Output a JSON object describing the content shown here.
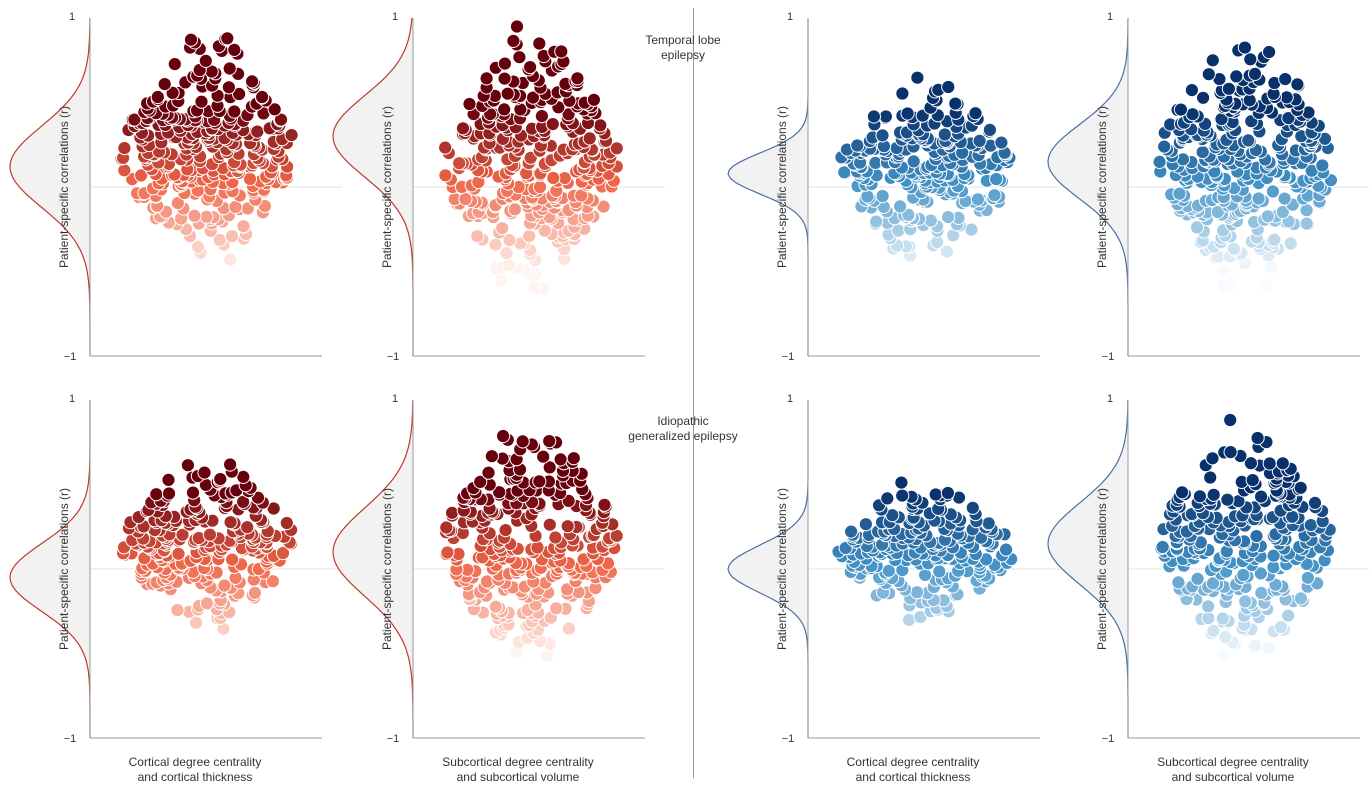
{
  "groups": {
    "tle": {
      "line1": "Temporal lobe",
      "line2": "epilepsy"
    },
    "ige": {
      "line1": "Idiopathic",
      "line2": "generalized epilepsy"
    }
  },
  "xlabels": {
    "cortical": {
      "line1": "Cortical degree centrality",
      "line2": "and cortical thickness"
    },
    "subcortical": {
      "line1": "Subcortical degree centrality",
      "line2": "and subcortical volume"
    }
  },
  "colors": {
    "red_dark": "#67000d",
    "red_mid": "#ef6548",
    "red_light": "#fff5f0",
    "blue_dark": "#08306b",
    "blue_mid": "#4292c6",
    "blue_light": "#f7fbff",
    "red_curve": "#c0392b",
    "blue_curve": "#4a6fa5"
  },
  "chart_data": [
    {
      "type": "scatter",
      "id": "tle-cortical-red",
      "row": 0,
      "col": 0,
      "palette": "red",
      "ylabel": "Patient-specific correlations (r)",
      "ylim": [
        -1,
        1
      ],
      "yticks": [
        "1",
        "−1"
      ],
      "center": 0.2,
      "spread": 0.55,
      "n": 330,
      "kde_center": 0.12,
      "kde_sd": 0.24
    },
    {
      "type": "scatter",
      "id": "tle-subcortical-red",
      "row": 0,
      "col": 1,
      "palette": "red",
      "ylabel": "Patient-specific correlations (r)",
      "ylim": [
        -1,
        1
      ],
      "yticks": [
        "1",
        "−1"
      ],
      "center": 0.15,
      "spread": 0.65,
      "n": 330,
      "kde_center": 0.3,
      "kde_sd": 0.24
    },
    {
      "type": "scatter",
      "id": "tle-cortical-blue",
      "row": 0,
      "col": 2,
      "palette": "blue",
      "ylabel": "Patient-specific correlations (r)",
      "ylim": [
        -1,
        1
      ],
      "yticks": [
        "1",
        "−1"
      ],
      "center": 0.1,
      "spread": 0.45,
      "n": 260,
      "kde_center": 0.08,
      "kde_sd": 0.12
    },
    {
      "type": "scatter",
      "id": "tle-subcortical-blue",
      "row": 0,
      "col": 3,
      "palette": "blue",
      "ylabel": "Patient-specific correlations (r)",
      "ylim": [
        -1,
        1
      ],
      "yticks": [
        "1",
        "−1"
      ],
      "center": 0.15,
      "spread": 0.65,
      "n": 330,
      "kde_center": 0.15,
      "kde_sd": 0.22
    },
    {
      "type": "scatter",
      "id": "ige-cortical-red",
      "row": 1,
      "col": 0,
      "palette": "red",
      "ylabel": "Patient-specific correlations (r)",
      "ylim": [
        -1,
        1
      ],
      "yticks": [
        "1",
        "−1"
      ],
      "center": 0.15,
      "spread": 0.42,
      "n": 260,
      "kde_center": -0.05,
      "kde_sd": 0.2
    },
    {
      "type": "scatter",
      "id": "ige-subcortical-red",
      "row": 1,
      "col": 1,
      "palette": "red",
      "ylabel": "Patient-specific correlations (r)",
      "ylim": [
        -1,
        1
      ],
      "yticks": [
        "1",
        "−1"
      ],
      "center": 0.15,
      "spread": 0.6,
      "n": 300,
      "kde_center": 0.1,
      "kde_sd": 0.26
    },
    {
      "type": "scatter",
      "id": "ige-cortical-blue",
      "row": 1,
      "col": 2,
      "palette": "blue",
      "ylabel": "Patient-specific correlations (r)",
      "ylim": [
        -1,
        1
      ],
      "yticks": [
        "1",
        "−1"
      ],
      "center": 0.1,
      "spread": 0.35,
      "n": 220,
      "kde_center": 0.0,
      "kde_sd": 0.14
    },
    {
      "type": "scatter",
      "id": "ige-subcortical-blue",
      "row": 1,
      "col": 3,
      "palette": "blue",
      "ylabel": "Patient-specific correlations (r)",
      "ylim": [
        -1,
        1
      ],
      "yticks": [
        "1",
        "−1"
      ],
      "center": 0.15,
      "spread": 0.55,
      "n": 280,
      "kde_center": 0.15,
      "kde_sd": 0.24
    }
  ]
}
